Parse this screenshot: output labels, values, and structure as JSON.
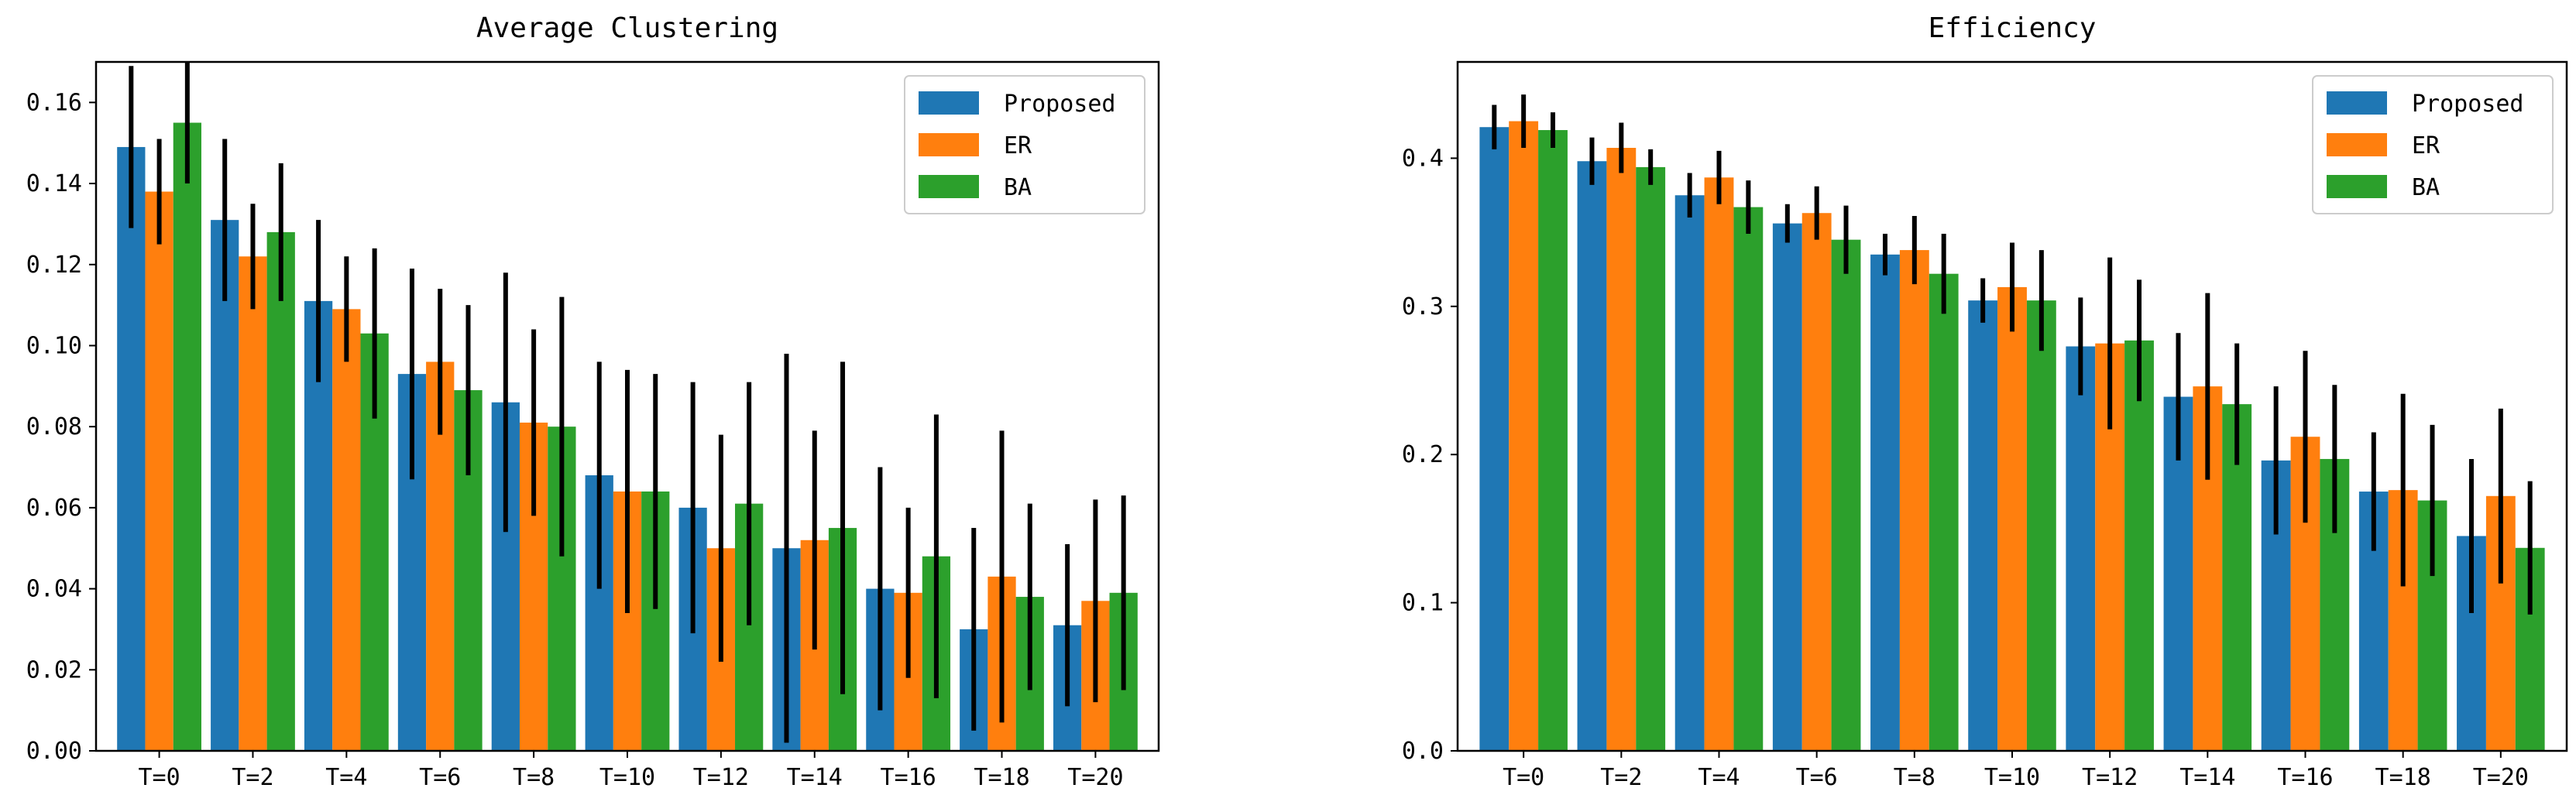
{
  "chart_data": [
    {
      "type": "bar",
      "title": "Average Clustering",
      "categories": [
        "T=0",
        "T=2",
        "T=4",
        "T=6",
        "T=8",
        "T=10",
        "T=12",
        "T=14",
        "T=16",
        "T=18",
        "T=20"
      ],
      "ylim": [
        0,
        0.17
      ],
      "yticks": [
        0.0,
        0.02,
        0.04,
        0.06,
        0.08,
        0.1,
        0.12,
        0.14,
        0.16
      ],
      "ytick_labels": [
        "0.00",
        "0.02",
        "0.04",
        "0.06",
        "0.08",
        "0.10",
        "0.12",
        "0.14",
        "0.16"
      ],
      "legend": {
        "position": "top-right"
      },
      "series": [
        {
          "name": "Proposed",
          "color": "#1f77b4",
          "values": [
            0.149,
            0.131,
            0.111,
            0.093,
            0.086,
            0.068,
            0.06,
            0.05,
            0.04,
            0.03,
            0.031
          ],
          "errors": [
            0.02,
            0.02,
            0.02,
            0.026,
            0.032,
            0.028,
            0.031,
            0.048,
            0.03,
            0.025,
            0.02
          ]
        },
        {
          "name": "ER",
          "color": "#ff7f0e",
          "values": [
            0.138,
            0.122,
            0.109,
            0.096,
            0.081,
            0.064,
            0.05,
            0.052,
            0.039,
            0.043,
            0.037
          ],
          "errors": [
            0.013,
            0.013,
            0.013,
            0.018,
            0.023,
            0.03,
            0.028,
            0.027,
            0.021,
            0.036,
            0.025
          ]
        },
        {
          "name": "BA",
          "color": "#2ca02c",
          "values": [
            0.155,
            0.128,
            0.103,
            0.089,
            0.08,
            0.064,
            0.061,
            0.055,
            0.048,
            0.038,
            0.039
          ],
          "errors": [
            0.015,
            0.017,
            0.021,
            0.021,
            0.032,
            0.029,
            0.03,
            0.041,
            0.035,
            0.023,
            0.024
          ]
        }
      ]
    },
    {
      "type": "bar",
      "title": "Efficiency",
      "categories": [
        "T=0",
        "T=2",
        "T=4",
        "T=6",
        "T=8",
        "T=10",
        "T=12",
        "T=14",
        "T=16",
        "T=18",
        "T=20"
      ],
      "ylim": [
        0,
        0.465
      ],
      "yticks": [
        0.0,
        0.1,
        0.2,
        0.3,
        0.4
      ],
      "ytick_labels": [
        "0.0",
        "0.1",
        "0.2",
        "0.3",
        "0.4"
      ],
      "legend": {
        "position": "top-right"
      },
      "series": [
        {
          "name": "Proposed",
          "color": "#1f77b4",
          "values": [
            0.421,
            0.398,
            0.375,
            0.356,
            0.335,
            0.304,
            0.273,
            0.239,
            0.196,
            0.175,
            0.145
          ],
          "errors": [
            0.015,
            0.016,
            0.015,
            0.013,
            0.014,
            0.015,
            0.033,
            0.043,
            0.05,
            0.04,
            0.052
          ]
        },
        {
          "name": "ER",
          "color": "#ff7f0e",
          "values": [
            0.425,
            0.407,
            0.387,
            0.363,
            0.338,
            0.313,
            0.275,
            0.246,
            0.212,
            0.176,
            0.172
          ],
          "errors": [
            0.018,
            0.017,
            0.018,
            0.018,
            0.023,
            0.03,
            0.058,
            0.063,
            0.058,
            0.065,
            0.059
          ]
        },
        {
          "name": "BA",
          "color": "#2ca02c",
          "values": [
            0.419,
            0.394,
            0.367,
            0.345,
            0.322,
            0.304,
            0.277,
            0.234,
            0.197,
            0.169,
            0.137
          ],
          "errors": [
            0.012,
            0.012,
            0.018,
            0.023,
            0.027,
            0.034,
            0.041,
            0.041,
            0.05,
            0.051,
            0.045
          ]
        }
      ]
    }
  ]
}
